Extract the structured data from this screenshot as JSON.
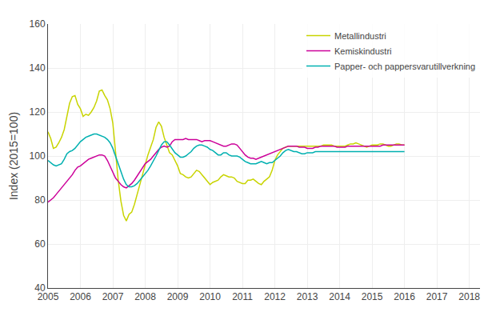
{
  "chart_data": {
    "type": "line",
    "ylabel": "Index (2015=100)",
    "x": [
      2005,
      2005.083333,
      2005.166667,
      2005.25,
      2005.333333,
      2005.416667,
      2005.5,
      2005.583333,
      2005.666667,
      2005.75,
      2005.833333,
      2005.916667,
      2006,
      2006.083333,
      2006.166667,
      2006.25,
      2006.333333,
      2006.416667,
      2006.5,
      2006.583333,
      2006.666667,
      2006.75,
      2006.833333,
      2006.916667,
      2007,
      2007.083333,
      2007.166667,
      2007.25,
      2007.333333,
      2007.416667,
      2007.5,
      2007.583333,
      2007.666667,
      2007.75,
      2007.833333,
      2007.916667,
      2008,
      2008.083333,
      2008.166667,
      2008.25,
      2008.333333,
      2008.416667,
      2008.5,
      2008.583333,
      2008.666667,
      2008.75,
      2008.833333,
      2008.916667,
      2009,
      2009.083333,
      2009.166667,
      2009.25,
      2009.333333,
      2009.416667,
      2009.5,
      2009.583333,
      2009.666667,
      2009.75,
      2009.833333,
      2009.916667,
      2010,
      2010.083333,
      2010.166667,
      2010.25,
      2010.333333,
      2010.416667,
      2010.5,
      2010.583333,
      2010.666667,
      2010.75,
      2010.833333,
      2010.916667,
      2011,
      2011.083333,
      2011.166667,
      2011.25,
      2011.333333,
      2011.416667,
      2011.5,
      2011.583333,
      2011.666667,
      2011.75,
      2011.833333,
      2011.916667,
      2012,
      2012.083333,
      2012.166667,
      2012.25,
      2012.333333,
      2012.416667,
      2012.5,
      2012.583333,
      2012.666667,
      2012.75,
      2012.833333,
      2012.916667,
      2013,
      2013.083333,
      2013.166667,
      2013.25,
      2013.333333,
      2013.416667,
      2013.5,
      2013.583333,
      2013.666667,
      2013.75,
      2013.833333,
      2013.916667,
      2014,
      2014.083333,
      2014.166667,
      2014.25,
      2014.333333,
      2014.416667,
      2014.5,
      2014.583333,
      2014.666667,
      2014.75,
      2014.833333,
      2014.916667,
      2015,
      2015.083333,
      2015.166667,
      2015.25,
      2015.333333,
      2015.416667,
      2015.5,
      2015.583333,
      2015.666667,
      2015.75,
      2015.833333,
      2015.916667,
      2016
    ],
    "series": [
      {
        "name": "Metallindustri",
        "color": "#c8d400",
        "values": [
          111.0,
          108.0,
          103.5,
          104.0,
          106.0,
          108.5,
          112.0,
          118.0,
          124.0,
          127.0,
          127.5,
          123.5,
          121.5,
          118.0,
          119.0,
          118.5,
          120.0,
          122.0,
          125.0,
          129.5,
          130.0,
          127.5,
          125.5,
          121.5,
          115.0,
          102.0,
          89.0,
          79.5,
          73.0,
          70.5,
          73.5,
          74.5,
          78.0,
          82.5,
          87.0,
          92.0,
          97.0,
          100.5,
          104.0,
          107.5,
          113.0,
          115.5,
          113.5,
          108.5,
          105.0,
          101.5,
          100.5,
          98.0,
          95.5,
          92.0,
          91.5,
          90.5,
          90.0,
          90.5,
          92.0,
          93.5,
          93.0,
          91.5,
          90.0,
          88.5,
          87.0,
          88.0,
          88.5,
          89.0,
          90.5,
          91.5,
          91.0,
          90.5,
          90.5,
          90.0,
          88.5,
          88.0,
          87.5,
          87.5,
          89.0,
          89.0,
          89.5,
          88.5,
          87.5,
          87.0,
          88.5,
          89.5,
          90.5,
          93.5,
          98.0,
          100.5,
          102.0,
          103.5,
          104.0,
          104.5,
          104.5,
          104.5,
          104.5,
          104.5,
          104.5,
          104.5,
          104.5,
          104.5,
          104.5,
          104.5,
          104.5,
          104.5,
          105.0,
          105.0,
          105.0,
          105.0,
          104.5,
          104.5,
          104.5,
          104.5,
          104.5,
          105.0,
          105.5,
          105.5,
          106.0,
          105.5,
          105.0,
          104.5,
          104.0,
          104.5,
          105.0,
          105.0,
          105.0,
          105.5,
          105.5,
          105.0,
          104.5,
          104.5,
          105.0,
          105.5,
          105.5,
          105.0,
          105.0
        ]
      },
      {
        "name": "Kemiskindustri",
        "color": "#cc0099",
        "values": [
          79.0,
          80.0,
          81.0,
          82.5,
          84.0,
          85.5,
          87.0,
          88.5,
          90.0,
          91.5,
          93.5,
          95.0,
          95.5,
          96.5,
          97.5,
          98.5,
          99.0,
          99.5,
          100.0,
          100.5,
          100.5,
          100.0,
          98.0,
          95.5,
          92.5,
          90.0,
          88.5,
          87.0,
          86.0,
          85.5,
          86.5,
          87.5,
          89.0,
          91.0,
          93.0,
          95.0,
          96.5,
          97.5,
          98.5,
          100.0,
          101.5,
          103.0,
          104.0,
          104.5,
          104.0,
          104.5,
          106.5,
          107.5,
          107.5,
          107.5,
          107.5,
          108.0,
          107.5,
          107.5,
          107.5,
          107.5,
          107.0,
          106.5,
          107.0,
          107.0,
          107.0,
          106.5,
          106.0,
          105.5,
          105.0,
          104.5,
          104.5,
          105.0,
          105.5,
          105.5,
          105.0,
          103.5,
          102.0,
          100.5,
          99.5,
          99.0,
          99.0,
          98.5,
          99.0,
          99.5,
          100.0,
          100.5,
          101.0,
          101.5,
          102.0,
          102.5,
          103.0,
          103.5,
          104.0,
          104.5,
          104.5,
          104.5,
          104.5,
          104.0,
          104.0,
          104.0,
          103.5,
          103.5,
          103.5,
          104.0,
          104.0,
          104.5,
          104.5,
          104.5,
          104.5,
          104.5,
          104.5,
          104.0,
          104.0,
          104.0,
          104.0,
          104.5,
          104.5,
          104.5,
          104.5,
          104.5,
          104.5,
          104.5,
          104.5,
          104.5,
          104.5,
          104.5,
          104.5,
          104.5,
          105.0,
          105.0,
          105.0,
          105.0,
          105.0,
          105.0,
          105.0,
          105.0,
          105.0
        ]
      },
      {
        "name": "Papper- och pappersvarutillverkning",
        "color": "#00b0b0",
        "values": [
          98.0,
          97.0,
          96.0,
          95.5,
          96.0,
          96.5,
          98.5,
          101.0,
          102.0,
          102.5,
          103.5,
          105.0,
          106.5,
          107.5,
          108.5,
          109.0,
          109.5,
          110.0,
          110.0,
          109.5,
          109.0,
          108.5,
          107.5,
          106.0,
          103.5,
          100.0,
          96.5,
          93.0,
          89.5,
          87.0,
          86.0,
          86.0,
          86.5,
          87.5,
          89.0,
          90.5,
          92.0,
          93.5,
          95.5,
          97.5,
          100.0,
          102.5,
          105.0,
          106.5,
          106.5,
          105.0,
          103.0,
          101.5,
          100.5,
          99.5,
          99.5,
          100.0,
          101.0,
          102.0,
          103.5,
          104.5,
          105.0,
          105.0,
          104.5,
          104.0,
          103.0,
          102.5,
          101.5,
          100.5,
          100.5,
          101.5,
          101.5,
          100.5,
          100.0,
          100.0,
          100.0,
          99.5,
          98.5,
          97.5,
          97.0,
          96.5,
          96.5,
          96.5,
          97.0,
          97.5,
          97.0,
          96.5,
          97.0,
          97.0,
          98.0,
          99.0,
          100.0,
          101.5,
          102.5,
          103.0,
          102.5,
          102.0,
          102.0,
          101.5,
          101.0,
          101.0,
          101.5,
          101.5,
          101.5,
          102.0,
          102.0,
          102.0,
          102.0,
          102.0,
          102.0,
          102.0,
          102.0,
          102.0,
          102.0,
          102.0,
          102.0,
          102.0,
          102.0,
          102.0,
          102.0,
          102.0,
          102.0,
          102.0,
          102.0,
          102.0,
          102.0,
          102.0,
          102.0,
          102.0,
          102.0,
          102.0,
          102.0,
          102.0,
          102.0,
          102.0,
          102.0,
          102.0,
          102.0
        ]
      }
    ],
    "xlim": [
      2005.0,
      2018.33
    ],
    "xticks": [
      2005,
      2006,
      2007,
      2008,
      2009,
      2010,
      2011,
      2012,
      2013,
      2014,
      2015,
      2016,
      2017,
      2018
    ],
    "ylim": [
      40,
      160
    ],
    "yticks": [
      40,
      60,
      80,
      100,
      120,
      140,
      160
    ],
    "grid": true,
    "legend": "upper right"
  }
}
